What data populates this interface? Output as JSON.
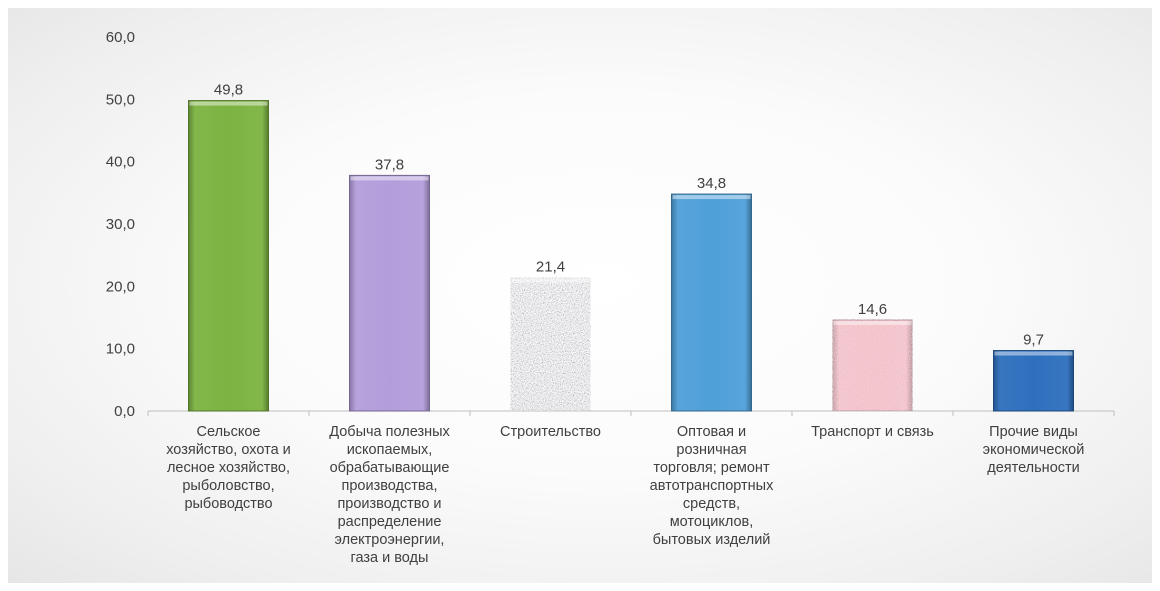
{
  "chart_data": {
    "type": "bar",
    "categories": [
      [
        "Сельское",
        "хозяйство, охота и",
        "лесное хозяйство,",
        "рыболовство,",
        "рыбоводство"
      ],
      [
        "Добыча полезных",
        "ископаемых,",
        "обрабатывающие",
        "производства,",
        "производство и",
        "распределение",
        "электроэнергии,",
        "газа и воды"
      ],
      [
        "Строительство"
      ],
      [
        "Оптовая и",
        "розничная",
        "торговля;  ремонт",
        "автотранспортных",
        "средств,",
        "мотоциклов,",
        "бытовых изделий"
      ],
      [
        "Транспорт и связь"
      ],
      [
        "Прочие виды",
        "экономической",
        "деятельности"
      ]
    ],
    "values": [
      49.8,
      37.8,
      21.4,
      34.8,
      14.6,
      9.7
    ],
    "value_labels": [
      "49,8",
      "37,8",
      "21,4",
      "34,8",
      "14,6",
      "9,7"
    ],
    "y_ticks": [
      "0,0",
      "10,0",
      "20,0",
      "30,0",
      "40,0",
      "50,0",
      "60,0"
    ],
    "ylim": [
      0,
      60
    ],
    "grid": false,
    "legend": "none",
    "colors": [
      "#7cb342",
      "#b39ddb",
      "#a7a9ac",
      "#4f9fd8",
      "#f2bcc4",
      "#2e6fbd"
    ]
  }
}
